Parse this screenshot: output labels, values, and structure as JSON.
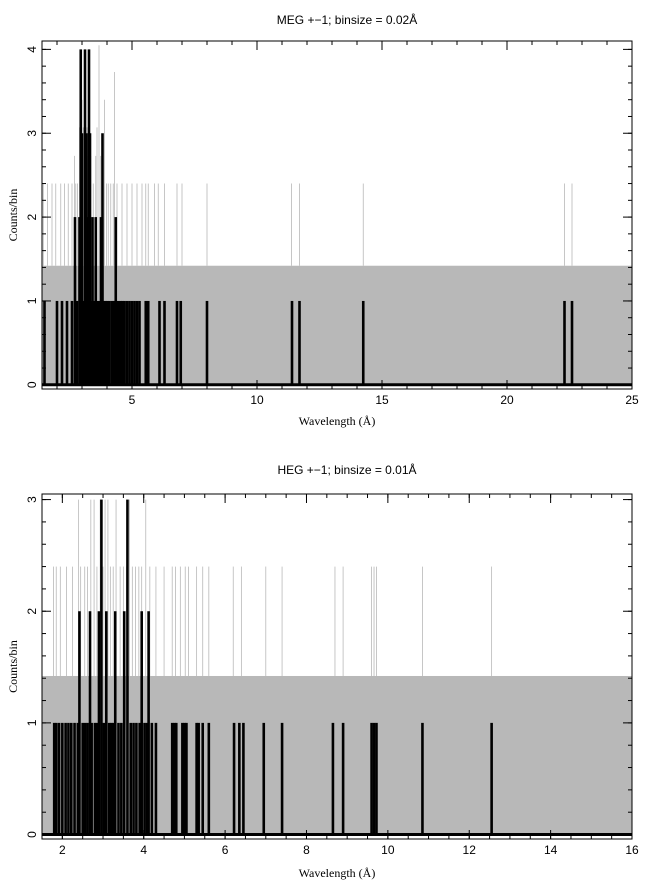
{
  "chart_data": [
    {
      "type": "bar",
      "title": "MEG +−1; binsize = 0.02Å",
      "xlabel": "Wavelength (Å)",
      "ylabel": "Counts/bin",
      "xlim": [
        1.4,
        25
      ],
      "ylim": [
        -0.05,
        4.1
      ],
      "xticks": [
        5,
        10,
        15,
        20,
        25
      ],
      "yticks": [
        0,
        1,
        2,
        3,
        4
      ],
      "grid": false,
      "background_level": 1.42,
      "background_color": "#b8b8b8",
      "error_tops": [
        [
          1.45,
          2.4
        ],
        [
          1.62,
          2.4
        ],
        [
          1.8,
          2.4
        ],
        [
          1.95,
          2.4
        ],
        [
          2.15,
          2.4
        ],
        [
          2.3,
          2.4
        ],
        [
          2.45,
          2.4
        ],
        [
          2.6,
          2.4
        ],
        [
          2.7,
          2.73
        ],
        [
          2.75,
          2.4
        ],
        [
          2.82,
          2.4
        ],
        [
          2.9,
          3.07
        ],
        [
          2.95,
          3.07
        ],
        [
          3.0,
          3.4
        ],
        [
          3.05,
          3.07
        ],
        [
          3.1,
          2.4
        ],
        [
          3.15,
          3.4
        ],
        [
          3.2,
          3.07
        ],
        [
          3.25,
          2.73
        ],
        [
          3.3,
          3.07
        ],
        [
          3.35,
          2.73
        ],
        [
          3.45,
          2.4
        ],
        [
          3.55,
          2.73
        ],
        [
          3.6,
          3.07
        ],
        [
          3.68,
          4.05
        ],
        [
          3.75,
          2.73
        ],
        [
          3.8,
          2.73
        ],
        [
          3.9,
          3.4
        ],
        [
          3.98,
          2.4
        ],
        [
          4.05,
          2.4
        ],
        [
          4.15,
          2.4
        ],
        [
          4.25,
          2.4
        ],
        [
          4.3,
          3.73
        ],
        [
          4.4,
          2.4
        ],
        [
          4.6,
          2.4
        ],
        [
          4.8,
          2.4
        ],
        [
          5.0,
          2.4
        ],
        [
          5.2,
          2.4
        ],
        [
          5.4,
          2.4
        ],
        [
          5.55,
          2.4
        ],
        [
          5.65,
          2.4
        ],
        [
          5.9,
          2.4
        ],
        [
          6.05,
          2.4
        ],
        [
          6.3,
          2.4
        ],
        [
          6.8,
          2.4
        ],
        [
          7.0,
          2.4
        ],
        [
          8.0,
          2.4
        ],
        [
          11.38,
          2.4
        ],
        [
          11.7,
          2.4
        ],
        [
          14.25,
          2.4
        ],
        [
          22.3,
          2.4
        ],
        [
          22.6,
          2.4
        ]
      ],
      "series": [
        {
          "style": "histogram",
          "x": [
            1.5,
            2.0,
            2.2,
            2.4,
            2.6,
            2.72,
            2.8,
            2.9,
            2.95,
            3.0,
            3.05,
            3.12,
            3.18,
            3.22,
            3.28,
            3.32,
            3.38,
            3.42,
            3.5,
            3.55,
            3.62,
            3.7,
            3.76,
            3.82,
            3.88,
            3.95,
            4.02,
            4.1,
            4.2,
            4.28,
            4.35,
            4.45,
            4.55,
            4.62,
            4.7,
            4.8,
            4.9,
            5.0,
            5.1,
            5.2,
            5.3,
            5.55,
            5.65,
            6.1,
            6.3,
            6.8,
            6.95,
            8.0,
            11.4,
            11.7,
            14.25,
            22.3,
            22.6
          ],
          "values": [
            1,
            1,
            1,
            1,
            1,
            2,
            1,
            2,
            4,
            3,
            1,
            4,
            3,
            2,
            4,
            3,
            1,
            2,
            1,
            2,
            1,
            1,
            2,
            3,
            1,
            1,
            1,
            1,
            1,
            1,
            2,
            1,
            1,
            1,
            1,
            1,
            1,
            1,
            1,
            1,
            1,
            1,
            1,
            1,
            1,
            1,
            1,
            1,
            1,
            1,
            1,
            1,
            1
          ]
        }
      ]
    },
    {
      "type": "bar",
      "title": "HEG +−1; binsize = 0.01Å",
      "xlabel": "Wavelength (Å)",
      "ylabel": "Counts/bin",
      "xlim": [
        1.5,
        16
      ],
      "ylim": [
        -0.04,
        3.05
      ],
      "xticks": [
        2,
        4,
        6,
        8,
        10,
        12,
        14,
        16
      ],
      "yticks": [
        0,
        1,
        2,
        3
      ],
      "grid": false,
      "background_level": 1.42,
      "background_color": "#b8b8b8",
      "error_tops": [
        [
          1.78,
          2.4
        ],
        [
          1.85,
          2.4
        ],
        [
          1.95,
          2.4
        ],
        [
          2.1,
          2.4
        ],
        [
          2.25,
          2.4
        ],
        [
          2.4,
          3.0
        ],
        [
          2.45,
          2.4
        ],
        [
          2.55,
          2.4
        ],
        [
          2.62,
          2.4
        ],
        [
          2.7,
          3.0
        ],
        [
          2.78,
          3.0
        ],
        [
          2.85,
          2.4
        ],
        [
          2.93,
          3.0
        ],
        [
          3.0,
          2.4
        ],
        [
          3.05,
          3.0
        ],
        [
          3.12,
          3.0
        ],
        [
          3.18,
          2.4
        ],
        [
          3.25,
          2.4
        ],
        [
          3.32,
          3.0
        ],
        [
          3.42,
          2.4
        ],
        [
          3.5,
          2.4
        ],
        [
          3.58,
          2.4
        ],
        [
          3.65,
          3.0
        ],
        [
          3.72,
          2.4
        ],
        [
          3.8,
          2.4
        ],
        [
          3.88,
          2.4
        ],
        [
          3.95,
          2.4
        ],
        [
          4.05,
          3.0
        ],
        [
          4.15,
          2.4
        ],
        [
          4.3,
          2.4
        ],
        [
          4.5,
          2.4
        ],
        [
          4.7,
          2.4
        ],
        [
          4.78,
          2.4
        ],
        [
          4.9,
          2.4
        ],
        [
          5.02,
          2.4
        ],
        [
          5.1,
          2.4
        ],
        [
          5.3,
          2.4
        ],
        [
          5.45,
          2.4
        ],
        [
          5.6,
          2.4
        ],
        [
          6.2,
          2.4
        ],
        [
          6.4,
          2.4
        ],
        [
          7.0,
          2.4
        ],
        [
          7.4,
          2.4
        ],
        [
          8.7,
          2.4
        ],
        [
          8.9,
          2.4
        ],
        [
          9.6,
          2.4
        ],
        [
          9.66,
          2.4
        ],
        [
          9.72,
          2.4
        ],
        [
          10.85,
          2.4
        ],
        [
          12.55,
          2.4
        ]
      ],
      "series": [
        {
          "style": "histogram",
          "x": [
            1.8,
            1.85,
            1.92,
            2.0,
            2.08,
            2.15,
            2.22,
            2.3,
            2.38,
            2.42,
            2.5,
            2.56,
            2.62,
            2.68,
            2.72,
            2.8,
            2.85,
            2.9,
            2.96,
            3.02,
            3.08,
            3.15,
            3.2,
            3.25,
            3.3,
            3.38,
            3.45,
            3.52,
            3.6,
            3.68,
            3.75,
            3.82,
            3.9,
            3.95,
            4.02,
            4.08,
            4.12,
            4.2,
            4.3,
            4.7,
            4.75,
            4.8,
            4.95,
            5.0,
            5.05,
            5.3,
            5.35,
            5.45,
            5.6,
            6.22,
            6.35,
            6.45,
            6.95,
            7.4,
            8.65,
            8.9,
            9.6,
            9.66,
            9.72,
            10.85,
            12.55
          ],
          "values": [
            1,
            1,
            1,
            1,
            1,
            1,
            1,
            1,
            1,
            2,
            1,
            1,
            1,
            2,
            1,
            1,
            1,
            2,
            3,
            1,
            2,
            1,
            1,
            1,
            2,
            1,
            1,
            2,
            3,
            1,
            1,
            1,
            1,
            2,
            1,
            1,
            2,
            1,
            1,
            1,
            1,
            1,
            1,
            1,
            1,
            1,
            1,
            1,
            1,
            1,
            1,
            1,
            1,
            1,
            1,
            1,
            1,
            1,
            1,
            1,
            1
          ]
        }
      ]
    }
  ]
}
